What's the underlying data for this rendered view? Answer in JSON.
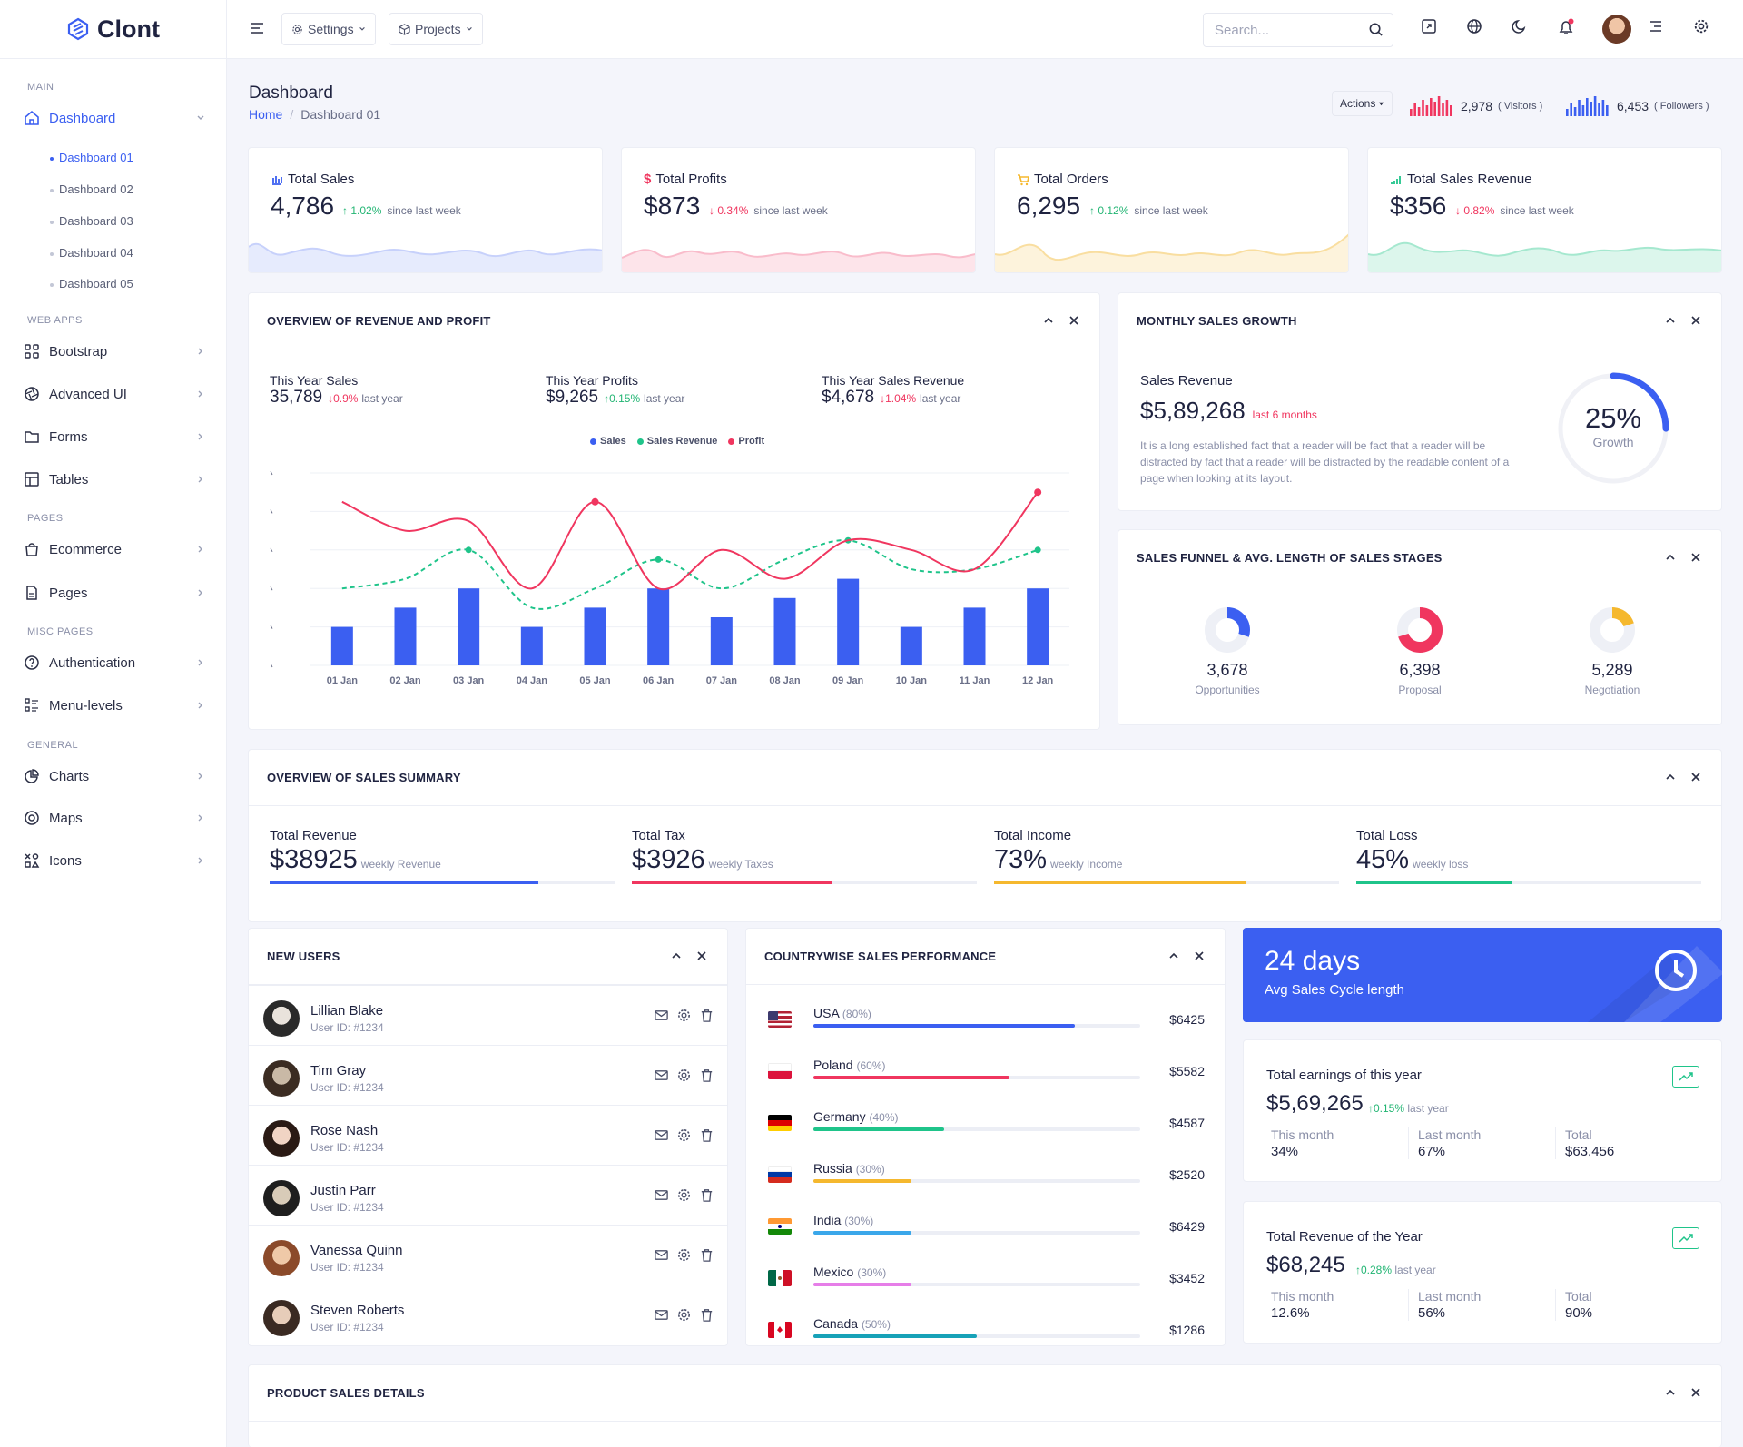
{
  "app": {
    "name": "Clont"
  },
  "sidebar": {
    "categories": {
      "main": "MAIN",
      "web_apps": "WEB APPS",
      "pages": "PAGES",
      "misc_pages": "MISC PAGES",
      "general": "GENERAL"
    },
    "dashboard": "Dashboard",
    "sub_items": [
      "Dashboard 01",
      "Dashboard 02",
      "Dashboard 03",
      "Dashboard 04",
      "Dashboard 05"
    ],
    "items": {
      "bootstrap": "Bootstrap",
      "advanced_ui": "Advanced UI",
      "forms": "Forms",
      "tables": "Tables",
      "ecommerce": "Ecommerce",
      "pages": "Pages",
      "authentication": "Authentication",
      "menu_levels": "Menu-levels",
      "charts": "Charts",
      "maps": "Maps",
      "icons": "Icons"
    }
  },
  "header": {
    "settings": "Settings",
    "projects": "Projects",
    "search_placeholder": "Search..."
  },
  "page": {
    "title": "Dashboard",
    "breadcrumb": {
      "home": "Home",
      "current": "Dashboard 01"
    },
    "actions": "Actions",
    "visitors": {
      "value": "2,978",
      "label": "( Visitors )"
    },
    "followers": {
      "value": "6,453",
      "label": "( Followers )"
    }
  },
  "kpis": [
    {
      "label": "Total Sales",
      "value": "4,786",
      "change": "1.02%",
      "dir": "up",
      "since": "since last week",
      "color": "#3b5ff1"
    },
    {
      "label": "Total Profits",
      "value": "$873",
      "change": "0.34%",
      "dir": "down",
      "since": "since last week",
      "color": "#f0365f"
    },
    {
      "label": "Total Orders",
      "value": "6,295",
      "change": "0.12%",
      "dir": "up",
      "since": "since last week",
      "color": "#f5b82e"
    },
    {
      "label": "Total Sales Revenue",
      "value": "$356",
      "change": "0.82%",
      "dir": "down",
      "since": "since last week",
      "color": "#1fc48a"
    }
  ],
  "overview": {
    "title": "OVERVIEW OF REVENUE AND PROFIT",
    "stats": [
      {
        "label": "This Year Sales",
        "value": "35,789",
        "change": "0.9%",
        "dir": "down",
        "suffix": "last year"
      },
      {
        "label": "This Year Profits",
        "value": "$9,265",
        "change": "0.15%",
        "dir": "up",
        "suffix": "last year"
      },
      {
        "label": "This Year Sales Revenue",
        "value": "$4,678",
        "change": "1.04%",
        "dir": "down",
        "suffix": "last year"
      }
    ]
  },
  "chart_data": {
    "type": "bar",
    "categories": [
      "01 Jan",
      "02 Jan",
      "03 Jan",
      "04 Jan",
      "05 Jan",
      "06 Jan",
      "07 Jan",
      "08 Jan",
      "09 Jan",
      "10 Jan",
      "11 Jan",
      "12 Jan"
    ],
    "series": [
      {
        "name": "Sales",
        "type": "bar",
        "color": "#3b5ff1",
        "values": [
          20,
          30,
          40,
          20,
          30,
          40,
          25,
          35,
          45,
          20,
          30,
          40
        ]
      },
      {
        "name": "Sales Revenue",
        "type": "line",
        "color": "#1fc48a",
        "values": [
          40,
          45,
          60,
          30,
          40,
          55,
          40,
          55,
          65,
          50,
          50,
          60
        ]
      },
      {
        "name": "Profit",
        "type": "line",
        "color": "#f0365f",
        "values": [
          85,
          70,
          75,
          40,
          85,
          40,
          60,
          45,
          65,
          60,
          50,
          90
        ]
      }
    ],
    "ylim": [
      0,
      100
    ]
  },
  "monthly": {
    "title": "MONTHLY SALES GROWTH",
    "label": "Sales Revenue",
    "value": "$5,89,268",
    "period": "last 6 months",
    "desc": "It is a long established fact that a reader will be fact that a reader will be distracted by fact that a reader will be distracted by the readable content of a page when looking at its layout.",
    "percent": "25%",
    "percent_value": 0.25,
    "growth": "Growth"
  },
  "funnel": {
    "title": "SALES FUNNEL & AVG. LENGTH OF SALES STAGES",
    "items": [
      {
        "value": "3,678",
        "label": "Opportunities",
        "color": "#3b5ff1",
        "fraction": 0.3
      },
      {
        "value": "6,398",
        "label": "Proposal",
        "color": "#f0365f",
        "fraction": 0.7
      },
      {
        "value": "5,289",
        "label": "Negotiation",
        "color": "#f5b82e",
        "fraction": 0.2
      }
    ]
  },
  "summary": {
    "title": "OVERVIEW OF SALES SUMMARY",
    "items": [
      {
        "label": "Total Revenue",
        "value": "$38925",
        "sub": "weekly Revenue",
        "color": "#3b5ff1",
        "fraction": 0.78
      },
      {
        "label": "Total Tax",
        "value": "$3926",
        "sub": "weekly Taxes",
        "color": "#f0365f",
        "fraction": 0.58
      },
      {
        "label": "Total Income",
        "value": "73%",
        "sub": "weekly Income",
        "color": "#f5b82e",
        "fraction": 0.73
      },
      {
        "label": "Total Loss",
        "value": "45%",
        "sub": "weekly loss",
        "color": "#1fc48a",
        "fraction": 0.45
      }
    ]
  },
  "new_users": {
    "title": "NEW USERS",
    "users": [
      {
        "name": "Lillian Blake",
        "id": "User ID: #1234"
      },
      {
        "name": "Tim Gray",
        "id": "User ID: #1234"
      },
      {
        "name": "Rose Nash",
        "id": "User ID: #1234"
      },
      {
        "name": "Justin Parr",
        "id": "User ID: #1234"
      },
      {
        "name": "Vanessa Quinn",
        "id": "User ID: #1234"
      },
      {
        "name": "Steven Roberts",
        "id": "User ID: #1234"
      }
    ]
  },
  "countries": {
    "title": "COUNTRYWISE SALES PERFORMANCE",
    "items": [
      {
        "name": "USA",
        "pct": "(80%)",
        "amount": "$6425",
        "color": "#3b5ff1",
        "fraction": 0.8
      },
      {
        "name": "Poland",
        "pct": "(60%)",
        "amount": "$5582",
        "color": "#f0365f",
        "fraction": 0.6
      },
      {
        "name": "Germany",
        "pct": "(40%)",
        "amount": "$4587",
        "color": "#1fc48a",
        "fraction": 0.4
      },
      {
        "name": "Russia",
        "pct": "(30%)",
        "amount": "$2520",
        "color": "#f5b82e",
        "fraction": 0.3
      },
      {
        "name": "India",
        "pct": "(30%)",
        "amount": "$6429",
        "color": "#3aa7ea",
        "fraction": 0.3
      },
      {
        "name": "Mexico",
        "pct": "(30%)",
        "amount": "$3452",
        "color": "#e67ee8",
        "fraction": 0.3
      },
      {
        "name": "Canada",
        "pct": "(50%)",
        "amount": "$1286",
        "color": "#17a2b8",
        "fraction": 0.5
      }
    ]
  },
  "cycle": {
    "value": "24 days",
    "label": "Avg Sales Cycle length"
  },
  "earnings": {
    "title": "Total earnings of this year",
    "value": "$5,69,265",
    "change": "0.15%",
    "suffix": "last year",
    "cols": [
      {
        "k": "This month",
        "n": "34%"
      },
      {
        "k": "Last month",
        "n": "67%"
      },
      {
        "k": "Total",
        "n": "$63,456"
      }
    ]
  },
  "revenue_year": {
    "title": "Total Revenue of the Year",
    "value": "$68,245",
    "change": "0.28%",
    "suffix": "last year",
    "cols": [
      {
        "k": "This month",
        "n": "12.6%"
      },
      {
        "k": "Last month",
        "n": "56%"
      },
      {
        "k": "Total",
        "n": "90%"
      }
    ]
  },
  "product": {
    "title": "PRODUCT SALES DETAILS"
  }
}
